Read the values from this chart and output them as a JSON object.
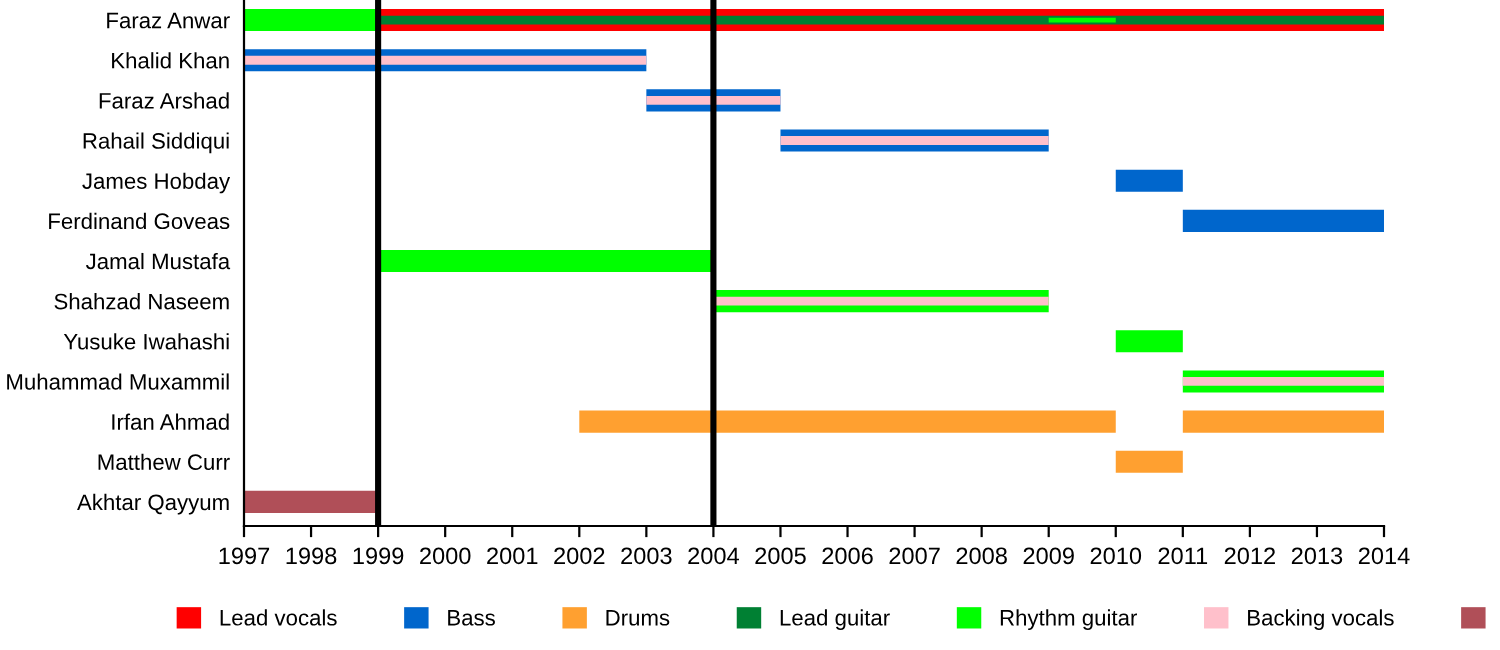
{
  "chart_data": {
    "type": "bar",
    "orientation": "horizontal",
    "categories": [
      "Faraz Anwar",
      "Khalid Khan",
      "Faraz Arshad",
      "Rahail Siddiqui",
      "James Hobday",
      "Ferdinand Goveas",
      "Jamal Mustafa",
      "Shahzad Naseem",
      "Yusuke Iwahashi",
      "Muhammad Muxammil",
      "Irfan Ahmad",
      "Matthew Curr",
      "Akhtar Qayyum"
    ],
    "series": [
      {
        "name": "Lead vocals",
        "color": "#ff0000",
        "base": [
          1999,
          null,
          null,
          null,
          null,
          null,
          null,
          null,
          null,
          null,
          null,
          null,
          null
        ],
        "values": [
          15,
          null,
          null,
          null,
          null,
          null,
          null,
          null,
          null,
          null,
          null,
          null,
          null
        ]
      },
      {
        "name": "Bass",
        "color": "#0066cc",
        "base": [
          null,
          1997,
          2003,
          2005,
          2010,
          2011,
          null,
          null,
          null,
          null,
          null,
          null,
          null
        ],
        "values": [
          null,
          6,
          2,
          4,
          1,
          3,
          null,
          null,
          null,
          null,
          null,
          null,
          null
        ]
      },
      {
        "name": "Drums",
        "color": "#ffa030",
        "base": [
          null,
          null,
          null,
          null,
          null,
          null,
          null,
          null,
          null,
          null,
          2002,
          2010,
          null
        ],
        "values": [
          null,
          null,
          null,
          null,
          null,
          null,
          null,
          null,
          null,
          null,
          8,
          1,
          null
        ]
      },
      {
        "color": "#ffa030",
        "base": [
          null,
          null,
          null,
          null,
          null,
          null,
          null,
          null,
          null,
          null,
          2011,
          null,
          null
        ],
        "values": [
          null,
          null,
          null,
          null,
          null,
          null,
          null,
          null,
          null,
          null,
          3,
          null,
          null
        ]
      },
      {
        "name": "Lead guitar",
        "color": "#008033",
        "base": [
          1999,
          null,
          null,
          null,
          null,
          null,
          null,
          null,
          null,
          null,
          null,
          null,
          null
        ],
        "values": [
          15,
          null,
          null,
          null,
          null,
          null,
          null,
          null,
          null,
          null,
          null,
          null,
          null
        ]
      },
      {
        "name": "Rhythm guitar",
        "color": "#00ff00",
        "base": [
          1997,
          null,
          null,
          null,
          null,
          null,
          1999,
          2004,
          2010,
          2011,
          null,
          null,
          null
        ],
        "values": [
          2,
          null,
          null,
          null,
          null,
          null,
          5,
          5,
          1,
          3,
          null,
          null,
          null
        ]
      },
      {
        "color": "#00ff00",
        "base": [
          2009,
          null,
          null,
          null,
          null,
          null,
          null,
          null,
          null,
          null,
          null,
          null,
          null
        ],
        "values": [
          1,
          null,
          null,
          null,
          null,
          null,
          null,
          null,
          null,
          null,
          null,
          null,
          null
        ]
      },
      {
        "name": "Backing vocals",
        "color": "#ffc0cb",
        "base": [
          null,
          1997,
          2003,
          2005,
          null,
          null,
          null,
          2004,
          null,
          2011,
          null,
          null,
          null
        ],
        "values": [
          null,
          6,
          2,
          4,
          null,
          null,
          null,
          5,
          null,
          3,
          null,
          null,
          null
        ]
      },
      {
        "color": "#b04f58",
        "base": [
          null,
          null,
          null,
          null,
          null,
          null,
          null,
          null,
          null,
          null,
          null,
          null,
          1997
        ],
        "values": [
          null,
          null,
          null,
          null,
          null,
          null,
          null,
          null,
          null,
          null,
          null,
          null,
          2
        ]
      }
    ],
    "xlim": [
      1997,
      2014
    ],
    "xticks": [
      1997,
      1998,
      1999,
      2000,
      2001,
      2002,
      2003,
      2004,
      2005,
      2006,
      2007,
      2008,
      2009,
      2010,
      2011,
      2012,
      2013,
      2014
    ],
    "ref_lines": [
      {
        "axis": "x",
        "value": 1999,
        "color": "#000000"
      },
      {
        "axis": "x",
        "value": 2004,
        "color": "#000000"
      }
    ],
    "legend": "bottom",
    "grid": false
  }
}
